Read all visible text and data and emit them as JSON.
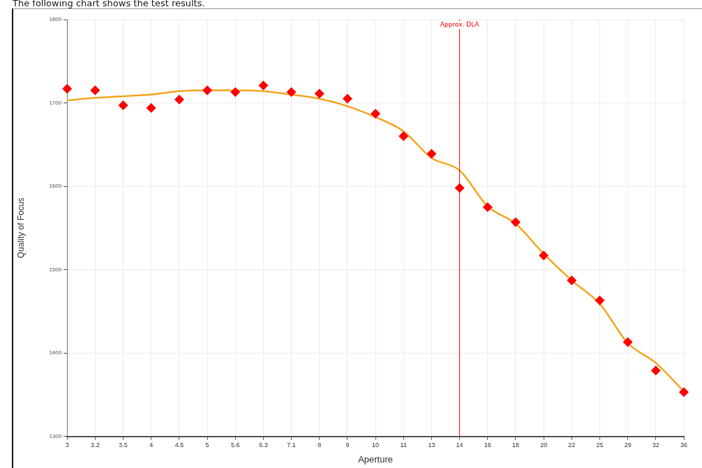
{
  "chart_data": {
    "type": "scatter",
    "title": "The following chart shows the test results.",
    "xlabel": "Aperture",
    "ylabel": "Quality of Focus",
    "categories": [
      "3",
      "3.2",
      "3.5",
      "4",
      "4.5",
      "5",
      "5.6",
      "6.3",
      "7.1",
      "8",
      "9",
      "10",
      "11",
      "13",
      "14",
      "16",
      "18",
      "20",
      "22",
      "25",
      "29",
      "32",
      "36"
    ],
    "ylim": [
      1300,
      1800
    ],
    "yticks": [
      1300,
      1400,
      1500,
      1600,
      1700,
      1800
    ],
    "grid": true,
    "series": [
      {
        "color": "#ff0000",
        "marker": "diamond",
        "values": [
          1717,
          1715,
          1697,
          1694,
          1704,
          1715,
          1713,
          1721,
          1713,
          1711,
          1705,
          1687,
          1660,
          1639,
          1598,
          1575,
          1557,
          1517,
          1487,
          1463,
          1413,
          1379,
          1353
        ]
      },
      {
        "type": "line",
        "color": "#f5a623",
        "marker": "none",
        "values": [
          1703,
          1706,
          1708,
          1710,
          1714,
          1715,
          1715,
          1714,
          1710,
          1705,
          1696,
          1683,
          1666,
          1634,
          1619,
          1576,
          1555,
          1519,
          1487,
          1459,
          1412,
          1388,
          1354
        ]
      }
    ],
    "ref_lines": [
      {
        "axis": "x",
        "value": "14",
        "label": "Approx. DLA",
        "color": "#ff0000"
      }
    ]
  }
}
